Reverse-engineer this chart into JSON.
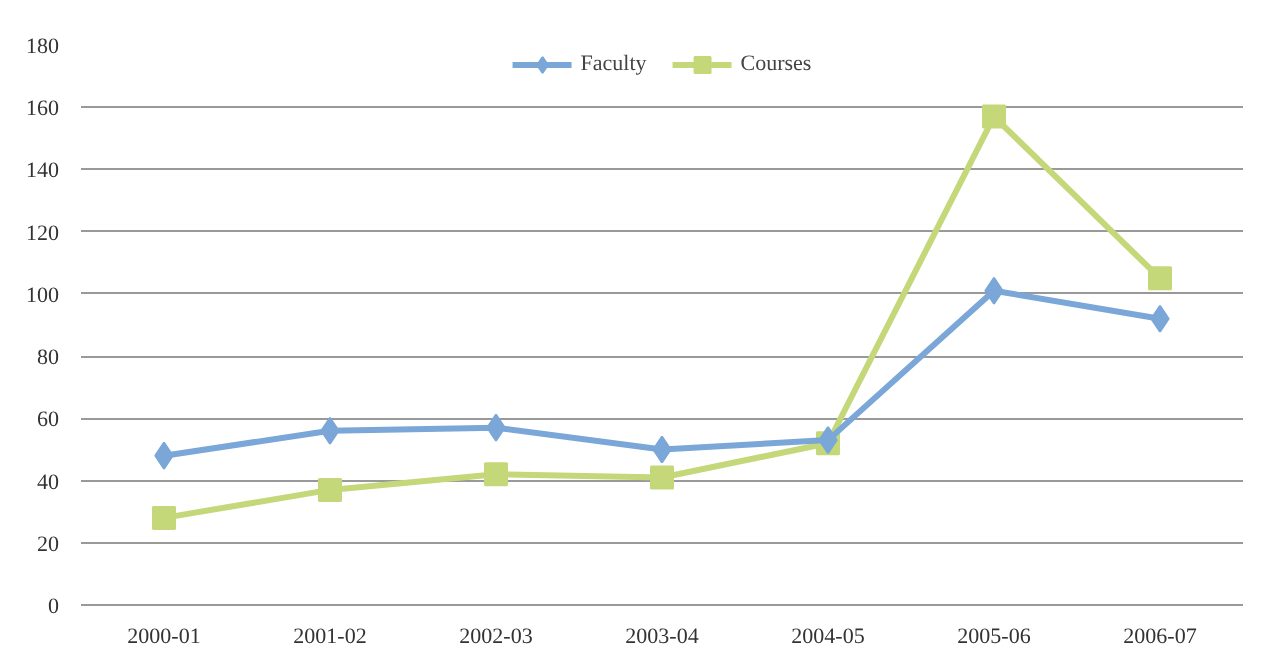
{
  "chart_data": {
    "type": "line",
    "categories": [
      "2000-01",
      "2001-02",
      "2002-03",
      "2003-04",
      "2004-05",
      "2005-06",
      "2006-07"
    ],
    "series": [
      {
        "name": "Faculty",
        "color": "#7aa7d7",
        "marker": "diamond",
        "values": [
          48,
          56,
          57,
          50,
          53,
          101,
          92
        ]
      },
      {
        "name": "Courses",
        "color": "#c4d87a",
        "marker": "square",
        "values": [
          28,
          37,
          42,
          41,
          52,
          157,
          105
        ]
      }
    ],
    "ylim": [
      0,
      180
    ],
    "yticks": [
      0,
      20,
      40,
      60,
      80,
      100,
      120,
      140,
      160,
      180
    ],
    "grid": "y",
    "legend": "top",
    "line_style": "solid"
  }
}
